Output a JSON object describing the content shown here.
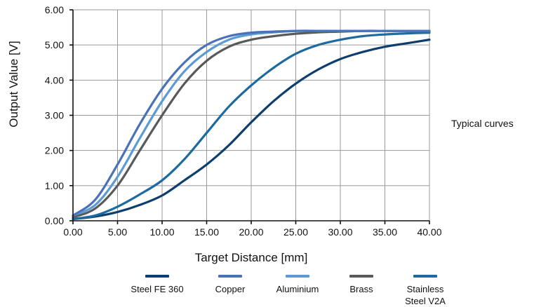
{
  "chart_data": {
    "type": "line",
    "xlabel": "Target Distance  [mm]",
    "ylabel": "Output Value  [V]",
    "xlim": [
      0,
      40
    ],
    "ylim": [
      0,
      6
    ],
    "xticks": [
      "0.00",
      "5.00",
      "10.00",
      "15.00",
      "20.00",
      "25.00",
      "30.00",
      "35.00",
      "40.00"
    ],
    "yticks": [
      "0.00",
      "1.00",
      "2.00",
      "3.00",
      "4.00",
      "5.00",
      "6.00"
    ],
    "grid": true,
    "legend_position": "bottom",
    "annotation": "Typical curves",
    "series": [
      {
        "name": "Steel FE 360",
        "color": "#0d3f6e",
        "x": [
          0,
          2.5,
          5,
          7.5,
          10,
          12.5,
          15,
          17.5,
          20,
          22.5,
          25,
          27.5,
          30,
          32.5,
          35,
          37.5,
          40
        ],
        "y": [
          0.05,
          0.12,
          0.25,
          0.45,
          0.72,
          1.15,
          1.6,
          2.15,
          2.8,
          3.4,
          3.9,
          4.3,
          4.6,
          4.8,
          4.95,
          5.05,
          5.15
        ]
      },
      {
        "name": "Copper",
        "color": "#4a72b8",
        "x": [
          0,
          2.5,
          5,
          7.5,
          10,
          12.5,
          15,
          17.5,
          20,
          22.5,
          25,
          27.5,
          30,
          32.5,
          35,
          37.5,
          40
        ],
        "y": [
          0.15,
          0.6,
          1.6,
          2.75,
          3.75,
          4.5,
          5.0,
          5.25,
          5.35,
          5.38,
          5.4,
          5.4,
          5.4,
          5.4,
          5.4,
          5.4,
          5.4
        ]
      },
      {
        "name": "Aluminium",
        "color": "#5b9bd5",
        "x": [
          0,
          2.5,
          5,
          7.5,
          10,
          12.5,
          15,
          17.5,
          20,
          22.5,
          25,
          27.5,
          30,
          32.5,
          35,
          37.5,
          40
        ],
        "y": [
          0.15,
          0.45,
          1.25,
          2.35,
          3.4,
          4.25,
          4.8,
          5.15,
          5.3,
          5.36,
          5.4,
          5.4,
          5.4,
          5.4,
          5.4,
          5.4,
          5.4
        ]
      },
      {
        "name": "Brass",
        "color": "#58595b",
        "x": [
          0,
          2.5,
          5,
          7.5,
          10,
          12.5,
          15,
          17.5,
          20,
          22.5,
          25,
          27.5,
          30,
          32.5,
          35,
          37.5,
          40
        ],
        "y": [
          0.1,
          0.35,
          1.0,
          2.0,
          3.0,
          3.9,
          4.55,
          4.95,
          5.15,
          5.25,
          5.32,
          5.36,
          5.38,
          5.4,
          5.4,
          5.4,
          5.4
        ]
      },
      {
        "name": "Stainless\nSteel V2A",
        "color": "#1c6aa0",
        "x": [
          0,
          2.5,
          5,
          7.5,
          10,
          12.5,
          15,
          17.5,
          20,
          22.5,
          25,
          27.5,
          30,
          32.5,
          35,
          37.5,
          40
        ],
        "y": [
          0.05,
          0.15,
          0.4,
          0.75,
          1.15,
          1.75,
          2.5,
          3.25,
          3.85,
          4.35,
          4.75,
          5.0,
          5.15,
          5.25,
          5.3,
          5.33,
          5.35
        ]
      }
    ]
  },
  "legend": [
    {
      "label": "Steel FE 360",
      "color": "#0d3f6e"
    },
    {
      "label": "Copper",
      "color": "#4a72b8"
    },
    {
      "label": "Aluminium",
      "color": "#5b9bd5"
    },
    {
      "label": "Brass",
      "color": "#58595b"
    },
    {
      "label": "Stainless\nSteel V2A",
      "color": "#1c6aa0"
    }
  ]
}
